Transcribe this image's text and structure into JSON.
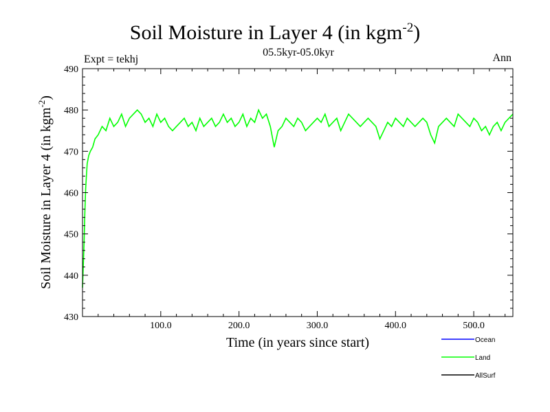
{
  "chart_data": {
    "type": "line",
    "title": "Soil Moisture in Layer 4 (in kgm",
    "title_sup": "-2",
    "title_close": ")",
    "subtitle": "05.5kyr-05.0kyr",
    "experiment_label": "Expt = tekhj",
    "season_label": "Ann",
    "xlabel": "Time (in years since start)",
    "ylabel": "Soil Moisture in Layer 4 (in kgm",
    "ylabel_sup": "-2",
    "ylabel_close": ")",
    "xlim": [
      0,
      550
    ],
    "ylim": [
      430,
      490
    ],
    "xticks": [
      100,
      200,
      300,
      400,
      500
    ],
    "xtick_labels": [
      "100.0",
      "200.0",
      "300.0",
      "400.0",
      "500.0"
    ],
    "yticks": [
      430,
      440,
      450,
      460,
      470,
      480,
      490
    ],
    "ytick_labels": [
      "430",
      "440",
      "450",
      "460",
      "470",
      "480",
      "490"
    ],
    "legend_position": "bottom-right",
    "series": [
      {
        "name": "Ocean",
        "color": "#0000ff",
        "x": [],
        "y": []
      },
      {
        "name": "Land",
        "color": "#00ff00",
        "x": [
          0,
          1,
          2,
          3,
          4,
          5,
          6,
          8,
          10,
          13,
          16,
          20,
          25,
          30,
          35,
          40,
          45,
          50,
          55,
          60,
          65,
          70,
          75,
          80,
          85,
          90,
          95,
          100,
          105,
          110,
          115,
          120,
          125,
          130,
          135,
          140,
          145,
          150,
          155,
          160,
          165,
          170,
          175,
          180,
          185,
          190,
          195,
          200,
          205,
          210,
          215,
          220,
          225,
          230,
          235,
          240,
          245,
          250,
          255,
          260,
          265,
          270,
          275,
          280,
          285,
          290,
          295,
          300,
          305,
          310,
          315,
          320,
          325,
          330,
          335,
          340,
          345,
          350,
          355,
          360,
          365,
          370,
          375,
          380,
          385,
          390,
          395,
          400,
          405,
          410,
          415,
          420,
          425,
          430,
          435,
          440,
          445,
          450,
          455,
          460,
          465,
          470,
          475,
          480,
          485,
          490,
          495,
          500,
          505,
          510,
          515,
          520,
          525,
          530,
          535,
          540,
          545,
          550
        ],
        "y": [
          437,
          442,
          448,
          455,
          461,
          464,
          467,
          469,
          470,
          471,
          473,
          474,
          476,
          475,
          478,
          476,
          477,
          479,
          476,
          478,
          479,
          480,
          479,
          477,
          478,
          476,
          479,
          477,
          478,
          476,
          475,
          476,
          477,
          478,
          476,
          477,
          475,
          478,
          476,
          477,
          478,
          476,
          477,
          479,
          477,
          478,
          476,
          477,
          479,
          476,
          478,
          477,
          480,
          478,
          479,
          476,
          471,
          475,
          476,
          478,
          477,
          476,
          478,
          477,
          475,
          476,
          477,
          478,
          477,
          479,
          476,
          477,
          478,
          475,
          477,
          479,
          478,
          477,
          476,
          477,
          478,
          477,
          476,
          473,
          475,
          477,
          476,
          478,
          477,
          476,
          478,
          477,
          476,
          477,
          478,
          477,
          474,
          472,
          476,
          477,
          478,
          477,
          476,
          479,
          478,
          477,
          476,
          478,
          477,
          475,
          476,
          474,
          476,
          477,
          475,
          477,
          478,
          479
        ]
      },
      {
        "name": "AllSurf",
        "color": "#000000",
        "x": [],
        "y": []
      }
    ]
  }
}
